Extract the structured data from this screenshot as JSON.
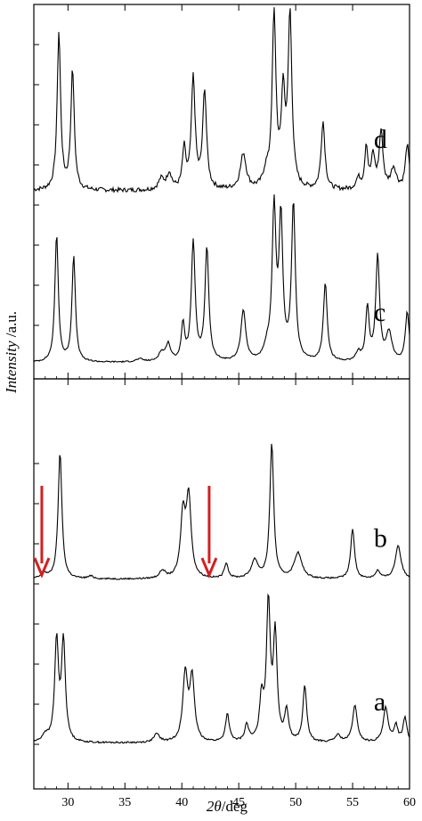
{
  "chart_data": {
    "type": "line",
    "xlabel": "2θ/deg",
    "xlabel_var": "2θ",
    "xlabel_unit": "/deg",
    "ylabel": "Intensity /a.u.",
    "ylabel_var": "Intensity",
    "ylabel_unit": " /a.u.",
    "xlim": [
      27,
      60
    ],
    "xticks": [
      30,
      35,
      40,
      45,
      50,
      55,
      60
    ],
    "grid": false,
    "line_color": "#000000",
    "arrow_color": "#d32020",
    "arrows_x": [
      27.7,
      42.4
    ],
    "panels": [
      {
        "series": [
          {
            "name": "d",
            "baseline": 0.04,
            "noise": 0.012,
            "peaks": [
              [
                29.2,
                0.88,
                0.18
              ],
              [
                30.4,
                0.67,
                0.18
              ],
              [
                38.2,
                0.06,
                0.3
              ],
              [
                38.9,
                0.09,
                0.25
              ],
              [
                40.2,
                0.22,
                0.18
              ],
              [
                41.0,
                0.62,
                0.2
              ],
              [
                42.0,
                0.55,
                0.2
              ],
              [
                45.4,
                0.2,
                0.3
              ],
              [
                47.4,
                0.08,
                0.3
              ],
              [
                48.1,
                0.96,
                0.2
              ],
              [
                48.9,
                0.5,
                0.2
              ],
              [
                49.5,
                0.96,
                0.2
              ],
              [
                52.4,
                0.38,
                0.2
              ],
              [
                55.5,
                0.06,
                0.25
              ],
              [
                56.2,
                0.24,
                0.16
              ],
              [
                56.8,
                0.18,
                0.2
              ],
              [
                57.5,
                0.32,
                0.2
              ],
              [
                58.6,
                0.12,
                0.3
              ],
              [
                59.8,
                0.25,
                0.2
              ]
            ]
          },
          {
            "name": "c",
            "baseline": 0.02,
            "noise": 0.005,
            "peaks": [
              [
                29.0,
                0.9,
                0.18
              ],
              [
                30.5,
                0.75,
                0.18
              ],
              [
                36.3,
                0.02,
                0.4
              ],
              [
                38.2,
                0.06,
                0.3
              ],
              [
                38.8,
                0.12,
                0.25
              ],
              [
                40.1,
                0.25,
                0.18
              ],
              [
                41.0,
                0.84,
                0.2
              ],
              [
                42.2,
                0.8,
                0.2
              ],
              [
                45.4,
                0.36,
                0.25
              ],
              [
                47.5,
                0.08,
                0.3
              ],
              [
                48.1,
                1.05,
                0.2
              ],
              [
                48.7,
                0.98,
                0.2
              ],
              [
                49.8,
                1.1,
                0.2
              ],
              [
                52.6,
                0.55,
                0.2
              ],
              [
                55.5,
                0.06,
                0.25
              ],
              [
                56.3,
                0.37,
                0.18
              ],
              [
                57.2,
                0.74,
                0.2
              ],
              [
                58.2,
                0.2,
                0.3
              ],
              [
                59.8,
                0.35,
                0.2
              ]
            ]
          }
        ]
      },
      {
        "series": [
          {
            "name": "b",
            "baseline": 0.015,
            "noise": 0.006,
            "peaks": [
              [
                27.9,
                0.04,
                0.3
              ],
              [
                29.3,
                0.98,
                0.2
              ],
              [
                32.0,
                0.02,
                0.3
              ],
              [
                38.3,
                0.06,
                0.3
              ],
              [
                40.1,
                0.48,
                0.25
              ],
              [
                40.6,
                0.62,
                0.25
              ],
              [
                43.9,
                0.12,
                0.2
              ],
              [
                46.4,
                0.14,
                0.35
              ],
              [
                47.9,
                1.05,
                0.2
              ],
              [
                50.2,
                0.2,
                0.4
              ],
              [
                55.0,
                0.39,
                0.2
              ],
              [
                57.2,
                0.06,
                0.25
              ],
              [
                59.0,
                0.26,
                0.3
              ]
            ]
          },
          {
            "name": "a",
            "baseline": 0.015,
            "noise": 0.006,
            "peaks": [
              [
                28.0,
                0.05,
                0.3
              ],
              [
                29.0,
                0.72,
                0.2
              ],
              [
                29.6,
                0.72,
                0.2
              ],
              [
                37.8,
                0.06,
                0.3
              ],
              [
                40.3,
                0.48,
                0.25
              ],
              [
                40.9,
                0.45,
                0.25
              ],
              [
                44.0,
                0.2,
                0.2
              ],
              [
                45.7,
                0.12,
                0.2
              ],
              [
                47.0,
                0.3,
                0.2
              ],
              [
                47.6,
                0.98,
                0.2
              ],
              [
                48.2,
                0.75,
                0.2
              ],
              [
                49.2,
                0.22,
                0.2
              ],
              [
                50.8,
                0.4,
                0.2
              ],
              [
                53.7,
                0.05,
                0.3
              ],
              [
                55.2,
                0.26,
                0.25
              ],
              [
                57.9,
                0.25,
                0.25
              ],
              [
                58.8,
                0.12,
                0.2
              ],
              [
                59.6,
                0.18,
                0.2
              ]
            ]
          }
        ]
      }
    ]
  }
}
